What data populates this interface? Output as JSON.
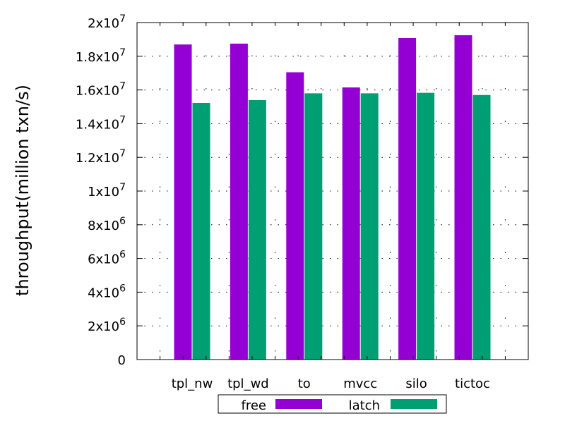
{
  "chart_data": {
    "type": "bar",
    "title": "",
    "xlabel": "",
    "ylabel": "throughput(million txn/s)",
    "ylim": [
      0,
      20000000
    ],
    "grid": "dotted",
    "legend_position": "bottom",
    "categories": [
      "tpl_nw",
      "tpl_wd",
      "to",
      "mvcc",
      "silo",
      "tictoc"
    ],
    "series": [
      {
        "name": "free",
        "color": "#9400d3",
        "values": [
          18700000,
          18750000,
          17050000,
          16150000,
          19080000,
          19250000
        ]
      },
      {
        "name": "latch",
        "color": "#009e73",
        "values": [
          15230000,
          15400000,
          15800000,
          15800000,
          15830000,
          15700000
        ]
      }
    ],
    "y_ticks": [
      {
        "value": 0,
        "label": "0",
        "exp": ""
      },
      {
        "value": 2000000,
        "label": "2x10",
        "exp": "6"
      },
      {
        "value": 4000000,
        "label": "4x10",
        "exp": "6"
      },
      {
        "value": 6000000,
        "label": "6x10",
        "exp": "6"
      },
      {
        "value": 8000000,
        "label": "8x10",
        "exp": "6"
      },
      {
        "value": 10000000,
        "label": "1x10",
        "exp": "7"
      },
      {
        "value": 12000000,
        "label": "1.2x10",
        "exp": "7"
      },
      {
        "value": 14000000,
        "label": "1.4x10",
        "exp": "7"
      },
      {
        "value": 16000000,
        "label": "1.6x10",
        "exp": "7"
      },
      {
        "value": 18000000,
        "label": "1.8x10",
        "exp": "7"
      },
      {
        "value": 20000000,
        "label": "2x10",
        "exp": "7"
      }
    ]
  }
}
